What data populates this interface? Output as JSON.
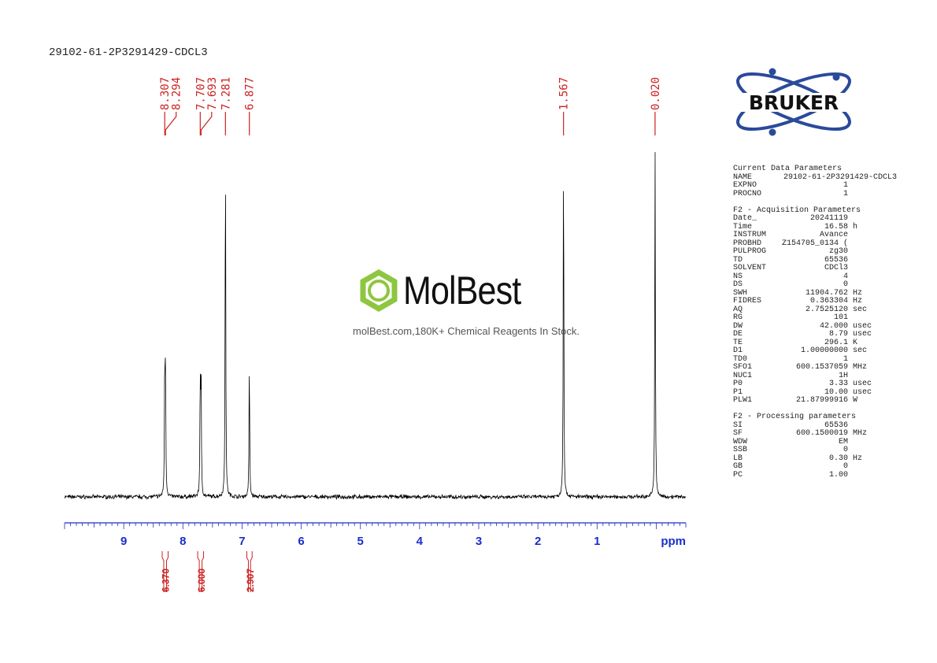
{
  "sample_name": "29102-61-2P3291429-CDCL3",
  "brand": "BRUKER",
  "watermark": {
    "name": "MolBest",
    "tagline": "molBest.com,180K+ Chemical Reagents In Stock."
  },
  "colors": {
    "spectrum": "#000000",
    "peak_label": "#cc2222",
    "axis": "#1a2ecc",
    "integral": "#cc2222",
    "brand_ring": "#2a4a9a",
    "watermark_green": "#8dc63f"
  },
  "chart_data": {
    "type": "line",
    "title": "29102-61-2P3291429-CDCL3",
    "xlabel": "ppm",
    "ylabel": "",
    "x_reversed": true,
    "xlim": [
      10.0,
      -0.5
    ],
    "x_ticks": [
      9,
      8,
      7,
      6,
      5,
      4,
      3,
      2,
      1
    ],
    "x_tick_labels": [
      "9",
      "8",
      "7",
      "6",
      "5",
      "4",
      "3",
      "2",
      "1"
    ],
    "grid": false,
    "peaks": [
      {
        "ppm": 8.307,
        "label": "8.307",
        "relative_height": 0.36
      },
      {
        "ppm": 8.294,
        "label": "8.294",
        "relative_height": 0.36
      },
      {
        "ppm": 7.707,
        "label": "7.707",
        "relative_height": 0.33
      },
      {
        "ppm": 7.693,
        "label": "7.693",
        "relative_height": 0.33
      },
      {
        "ppm": 7.281,
        "label": "7.281",
        "relative_height": 1.0
      },
      {
        "ppm": 6.877,
        "label": "6.877",
        "relative_height": 0.39
      },
      {
        "ppm": 1.567,
        "label": "1.567",
        "relative_height": 1.0
      },
      {
        "ppm": 0.02,
        "label": "0.020",
        "relative_height": 1.0
      }
    ],
    "integrals": [
      {
        "from": 8.35,
        "to": 8.25,
        "value": "6.370"
      },
      {
        "from": 7.75,
        "to": 7.65,
        "value": "6.000"
      },
      {
        "from": 6.92,
        "to": 6.83,
        "value": "2.907"
      }
    ]
  },
  "parameters": {
    "current": {
      "title": "Current Data Parameters",
      "rows": [
        {
          "key": "NAME",
          "value": "29102-61-2P3291429-CDCL3",
          "unit": ""
        },
        {
          "key": "EXPNO",
          "value": "1",
          "unit": ""
        },
        {
          "key": "PROCNO",
          "value": "1",
          "unit": ""
        }
      ]
    },
    "acquisition": {
      "title": "F2 - Acquisition Parameters",
      "rows": [
        {
          "key": "Date_",
          "value": "20241119",
          "unit": ""
        },
        {
          "key": "Time",
          "value": "16.58",
          "unit": "h"
        },
        {
          "key": "INSTRUM",
          "value": "Avance",
          "unit": ""
        },
        {
          "key": "PROBHD",
          "value": "Z154705_0134 (",
          "unit": ""
        },
        {
          "key": "PULPROG",
          "value": "zg30",
          "unit": ""
        },
        {
          "key": "TD",
          "value": "65536",
          "unit": ""
        },
        {
          "key": "SOLVENT",
          "value": "CDCl3",
          "unit": ""
        },
        {
          "key": "NS",
          "value": "4",
          "unit": ""
        },
        {
          "key": "DS",
          "value": "0",
          "unit": ""
        },
        {
          "key": "SWH",
          "value": "11904.762",
          "unit": "Hz"
        },
        {
          "key": "FIDRES",
          "value": "0.363304",
          "unit": "Hz"
        },
        {
          "key": "AQ",
          "value": "2.7525120",
          "unit": "sec"
        },
        {
          "key": "RG",
          "value": "101",
          "unit": ""
        },
        {
          "key": "DW",
          "value": "42.000",
          "unit": "usec"
        },
        {
          "key": "DE",
          "value": "8.79",
          "unit": "usec"
        },
        {
          "key": "TE",
          "value": "296.1",
          "unit": "K"
        },
        {
          "key": "D1",
          "value": "1.00000000",
          "unit": "sec"
        },
        {
          "key": "TD0",
          "value": "1",
          "unit": ""
        },
        {
          "key": "SFO1",
          "value": "600.1537059",
          "unit": "MHz"
        },
        {
          "key": "NUC1",
          "value": "1H",
          "unit": ""
        },
        {
          "key": "P0",
          "value": "3.33",
          "unit": "usec"
        },
        {
          "key": "P1",
          "value": "10.00",
          "unit": "usec"
        },
        {
          "key": "PLW1",
          "value": "21.87999916",
          "unit": "W"
        }
      ]
    },
    "processing": {
      "title": "F2 - Processing parameters",
      "rows": [
        {
          "key": "SI",
          "value": "65536",
          "unit": ""
        },
        {
          "key": "SF",
          "value": "600.1500019",
          "unit": "MHz"
        },
        {
          "key": "WDW",
          "value": "EM",
          "unit": ""
        },
        {
          "key": "SSB",
          "value": "0",
          "unit": ""
        },
        {
          "key": "LB",
          "value": "0.30",
          "unit": "Hz"
        },
        {
          "key": "GB",
          "value": "0",
          "unit": ""
        },
        {
          "key": "PC",
          "value": "1.00",
          "unit": ""
        }
      ]
    }
  }
}
